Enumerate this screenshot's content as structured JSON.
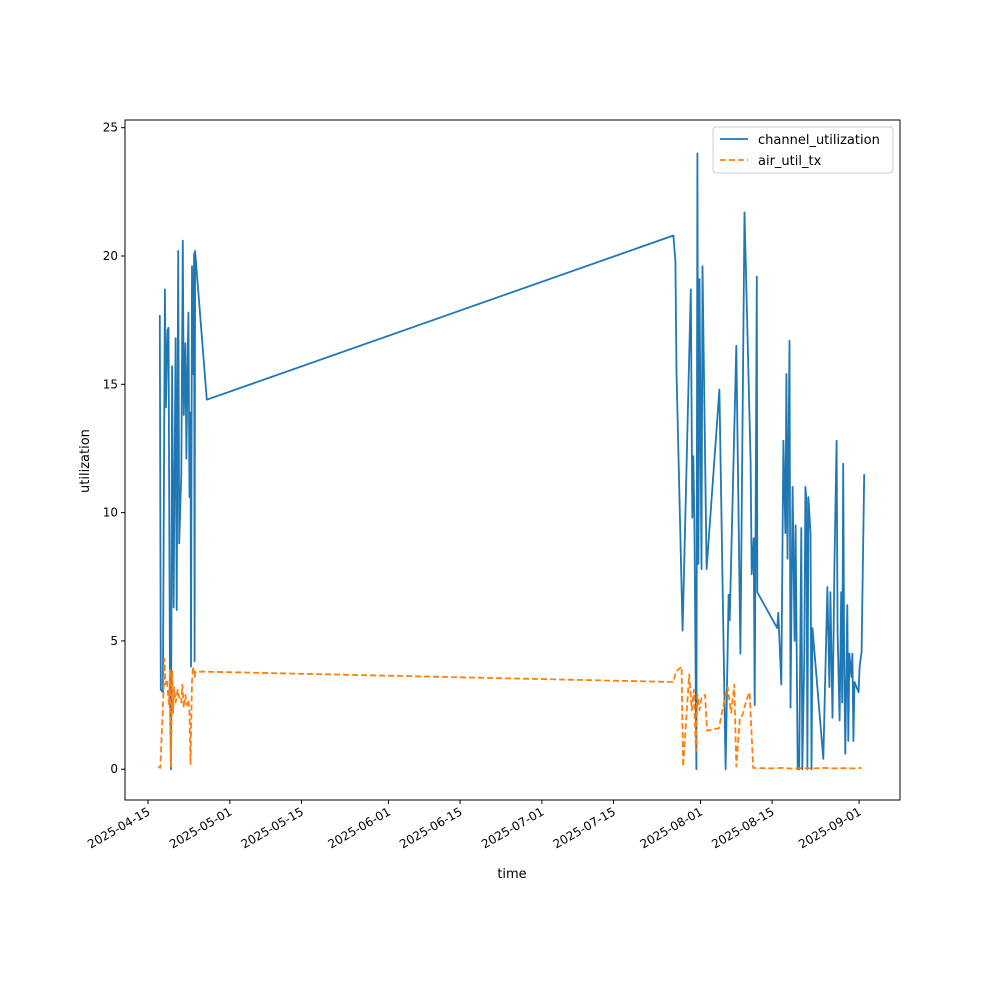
{
  "chart_data": {
    "type": "line",
    "title": "",
    "xlabel": "time",
    "ylabel": "utilization",
    "x_origin": "2025-04-15",
    "x_units": "days since x_origin",
    "xlim": [
      -4.5,
      147
    ],
    "ylim": [
      -1.2,
      25.3
    ],
    "xticks": [
      "2025-04-15",
      "2025-05-01",
      "2025-05-15",
      "2025-06-01",
      "2025-06-15",
      "2025-07-01",
      "2025-07-15",
      "2025-08-01",
      "2025-08-15",
      "2025-09-01"
    ],
    "xtick_days": [
      0,
      16,
      30,
      47,
      61,
      77,
      91,
      108,
      122,
      139
    ],
    "yticks": [
      0,
      5,
      10,
      15,
      20,
      25
    ],
    "grid": false,
    "legend_position": "top-right",
    "series": [
      {
        "name": "channel_utilization",
        "color": "#1f77b4",
        "style": "solid",
        "x": [
          2.3,
          2.5,
          2.9,
          3.3,
          3.5,
          3.8,
          4.0,
          4.3,
          4.5,
          4.7,
          5.0,
          5.4,
          5.6,
          5.9,
          6.1,
          6.5,
          6.8,
          7.0,
          7.3,
          7.5,
          7.7,
          7.9,
          8.1,
          8.3,
          8.4,
          8.6,
          8.8,
          9.0,
          9.1,
          9.2,
          11.5,
          102.7,
          103.1,
          103.3,
          104.5,
          106.1,
          106.4,
          106.6,
          106.8,
          107.2,
          107.4,
          107.6,
          107.8,
          108.2,
          108.4,
          109.2,
          111.7,
          112.9,
          113.5,
          113.7,
          115.0,
          115.8,
          116.6,
          117.8,
          118.0,
          118.4,
          118.6,
          119.0,
          119.1,
          123.0,
          123.2,
          123.8,
          124.2,
          124.6,
          124.8,
          125.0,
          125.4,
          125.6,
          126.0,
          126.4,
          126.6,
          127.0,
          127.3,
          127.7,
          127.9,
          128.3,
          128.5,
          128.7,
          128.9,
          129.1,
          129.5,
          129.7,
          129.9,
          132.0,
          132.8,
          133.2,
          133.4,
          133.8,
          134.2,
          134.6,
          134.8,
          135.2,
          135.5,
          135.7,
          135.9,
          136.1,
          136.3,
          136.7,
          136.9,
          137.1,
          137.5,
          137.7,
          137.9,
          138.1,
          138.9,
          139.1,
          139.5,
          140.0
        ],
        "y": [
          17.7,
          3.1,
          3.0,
          18.7,
          14.1,
          17.1,
          17.2,
          3.0,
          0.0,
          15.7,
          6.3,
          16.8,
          6.2,
          20.2,
          8.8,
          11.5,
          20.6,
          13.8,
          16.6,
          12.1,
          15.3,
          17.8,
          10.6,
          13.9,
          4.0,
          19.6,
          15.4,
          20.1,
          4.2,
          20.2,
          14.4,
          20.8,
          19.8,
          15.5,
          5.4,
          18.7,
          9.8,
          12.2,
          9.7,
          0.0,
          24.0,
          8.0,
          19.1,
          7.8,
          19.6,
          7.8,
          14.8,
          0.0,
          6.8,
          5.8,
          16.5,
          4.5,
          21.7,
          12.0,
          7.6,
          9.0,
          2.5,
          19.2,
          6.9,
          5.5,
          6.1,
          3.3,
          12.8,
          9.2,
          15.4,
          8.2,
          16.7,
          2.4,
          11.0,
          5.0,
          9.5,
          0.0,
          0.0,
          9.4,
          0.0,
          4.4,
          11.0,
          10.5,
          0.0,
          10.6,
          9.2,
          0.0,
          5.5,
          0.4,
          7.1,
          3.2,
          6.9,
          2.0,
          8.1,
          12.8,
          5.3,
          1.9,
          6.9,
          2.6,
          11.9,
          4.1,
          0.6,
          6.4,
          1.1,
          4.5,
          3.6,
          4.5,
          1.1,
          3.4,
          3.0,
          4.0,
          4.6,
          11.5
        ]
      },
      {
        "name": "air_util_tx",
        "color": "#ff7f0e",
        "style": "dashed",
        "x": [
          2.0,
          2.4,
          3.0,
          3.2,
          3.4,
          3.7,
          4.1,
          4.3,
          4.5,
          4.7,
          4.9,
          5.1,
          5.4,
          5.8,
          6.1,
          6.5,
          6.7,
          7.0,
          7.3,
          7.6,
          7.9,
          8.1,
          8.3,
          8.6,
          8.8,
          9.1,
          9.3,
          11.5,
          102.7,
          103.2,
          104.3,
          104.6,
          105.8,
          106.3,
          106.7,
          107.1,
          107.4,
          107.8,
          108.2,
          108.9,
          109.3,
          111.6,
          112.8,
          113.3,
          114.0,
          114.6,
          115.0,
          115.7,
          116.2,
          117.0,
          117.6,
          118.3,
          122.0,
          124.0,
          126.0,
          128.0,
          130.0,
          132.0,
          134.0,
          136.0,
          138.0,
          139.5
        ],
        "y": [
          0.1,
          0.05,
          2.9,
          4.3,
          3.3,
          3.5,
          2.5,
          3.9,
          0.1,
          3.8,
          2.2,
          3.2,
          2.6,
          3.1,
          2.8,
          2.6,
          3.3,
          2.4,
          2.9,
          2.5,
          2.7,
          2.2,
          0.2,
          3.4,
          4.0,
          3.6,
          3.8,
          3.8,
          3.4,
          3.8,
          4.0,
          0.1,
          3.7,
          2.3,
          3.1,
          0.7,
          2.9,
          2.3,
          2.8,
          2.9,
          1.5,
          1.6,
          2.8,
          3.2,
          2.2,
          3.3,
          0.1,
          2.0,
          2.1,
          2.7,
          3.0,
          0.05,
          0.03,
          0.05,
          0.02,
          0.04,
          0.03,
          0.05,
          0.03,
          0.04,
          0.03,
          0.05
        ]
      }
    ]
  }
}
